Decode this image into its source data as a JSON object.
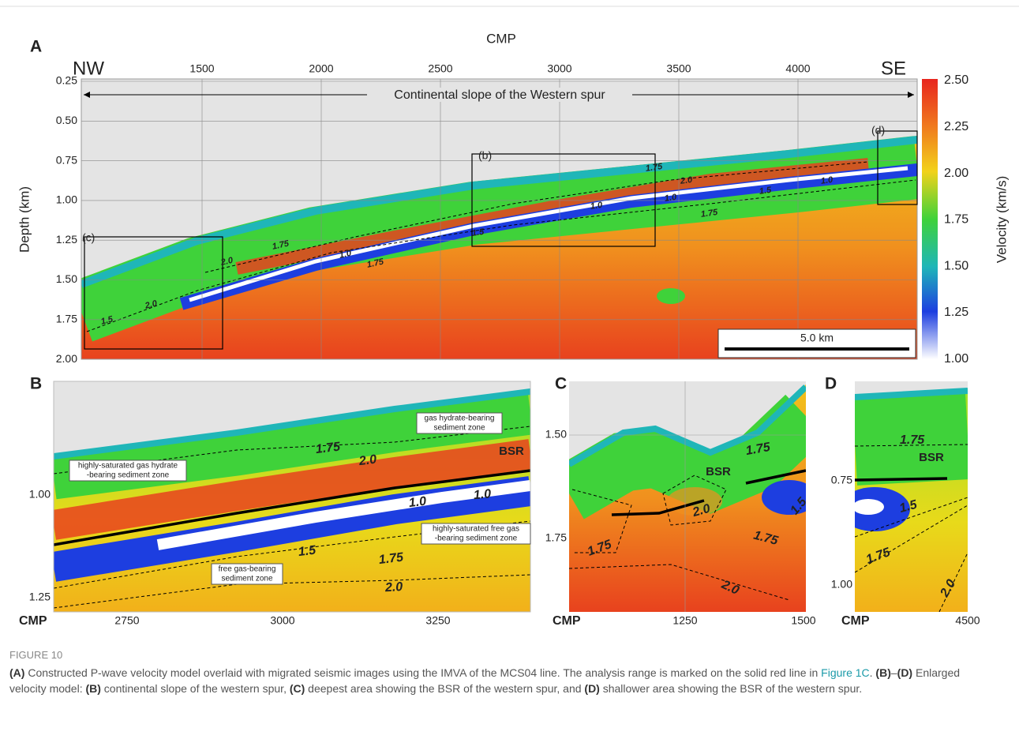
{
  "figure": {
    "panel_a": {
      "label": "A",
      "x_axis_title": "CMP",
      "y_axis_title": "Depth (km)",
      "x_ticks": [
        "1500",
        "2000",
        "2500",
        "3000",
        "3500",
        "4000"
      ],
      "y_ticks": [
        "0.25",
        "0.50",
        "0.75",
        "1.00",
        "1.25",
        "1.50",
        "1.75",
        "2.00"
      ],
      "left_end": "NW",
      "right_end": "SE",
      "span_label": "Continental slope of the Western spur",
      "boxes": [
        "(b)",
        "(c)",
        "(d)"
      ],
      "contours": [
        "1.75",
        "2.0",
        "1.0",
        "1.5",
        "1.0",
        "1.0",
        "1.75",
        "1.5",
        "1.75",
        "2.0",
        "1.0",
        "1.75",
        "2.0",
        "1.5"
      ],
      "scale_bar": "5.0 km",
      "colorbar": {
        "title": "Velocity (km/s)",
        "ticks": [
          "2.50",
          "2.25",
          "2.00",
          "1.75",
          "1.50",
          "1.25",
          "1.00"
        ]
      }
    },
    "panel_b": {
      "label": "B",
      "x_axis_title": "CMP",
      "x_ticks": [
        "2750",
        "3000",
        "3250"
      ],
      "y_ticks": [
        "1.00",
        "1.25"
      ],
      "zones": [
        [
          "gas hydrate-bearing",
          "sediment zone"
        ],
        [
          "highly-saturated gas hydrate",
          "-bearing sediment zone"
        ],
        [
          "highly-saturated free gas",
          "-bearing sediment zone"
        ],
        [
          "free gas-bearing",
          "sediment zone"
        ]
      ],
      "bsr": "BSR",
      "contours": [
        "1.75",
        "2.0",
        "1.0",
        "1.0",
        "1.5",
        "1.75",
        "2.0"
      ]
    },
    "panel_c": {
      "label": "C",
      "x_axis_title": "CMP",
      "x_ticks": [
        "1250",
        "1500"
      ],
      "y_ticks": [
        "1.50",
        "1.75"
      ],
      "bsr": "BSR",
      "contours": [
        "1.75",
        "2.0",
        "1.5",
        "1.75",
        "1.75",
        "2.0"
      ]
    },
    "panel_d": {
      "label": "D",
      "x_axis_title": "CMP",
      "x_ticks": [
        "4500"
      ],
      "y_ticks": [
        "0.75",
        "1.00"
      ],
      "bsr": "BSR",
      "contours": [
        "1.75",
        "1.5",
        "1.75",
        "2.0"
      ]
    }
  },
  "caption": {
    "label": "FIGURE 10",
    "segments": [
      "(A)",
      " Constructed P-wave velocity model overlaid with migrated seismic images using the IMVA of the MCS04 line. The analysis range is marked on the solid red line in ",
      "Figure 1C",
      ". ",
      "(B)",
      "–",
      "(D)",
      " Enlarged velocity model: ",
      "(B)",
      " continental slope of the western spur, ",
      "(C)",
      " deepest area showing the BSR of the western spur, and ",
      "(D)",
      " shallower area showing the BSR of the western spur."
    ]
  }
}
